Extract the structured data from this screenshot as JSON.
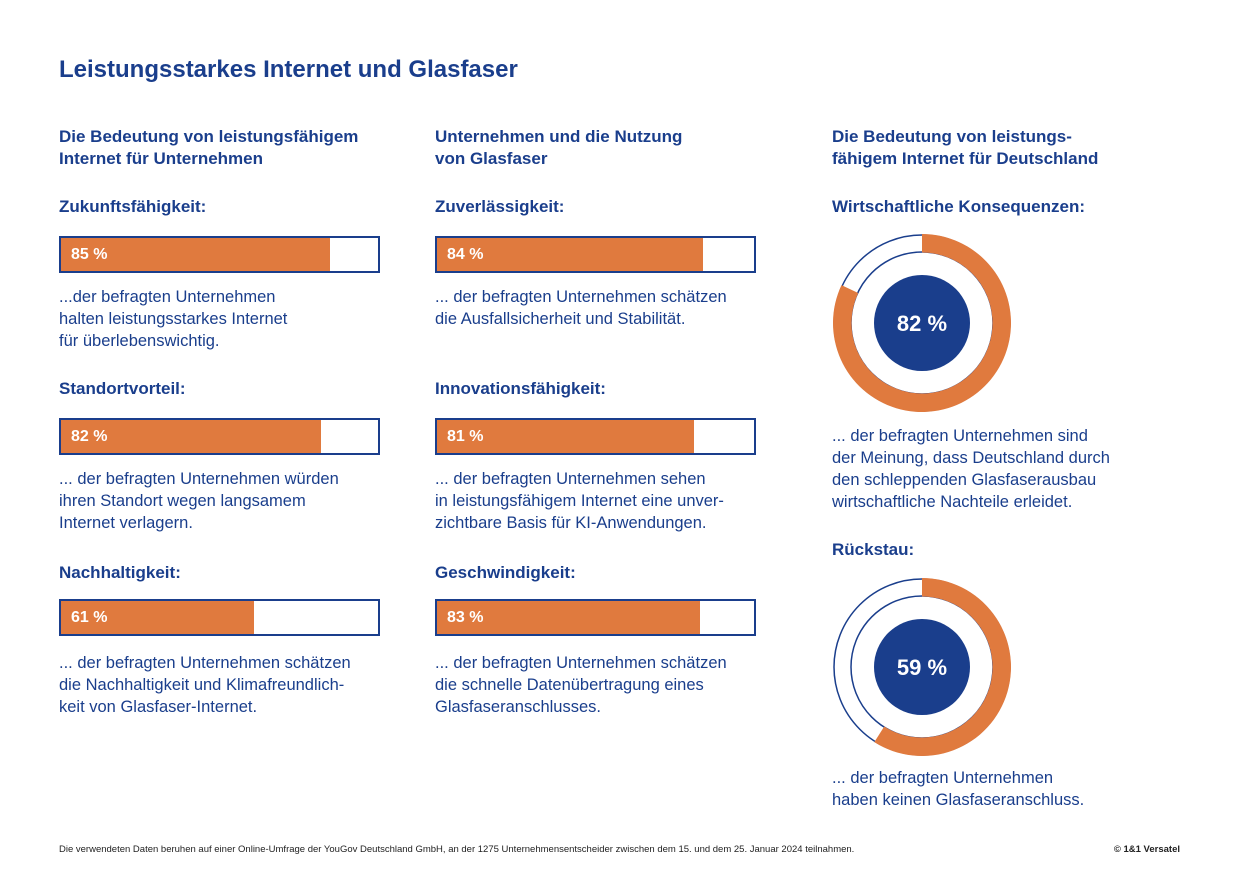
{
  "title": "Leistungsstarkes Internet und Glasfaser",
  "colors": {
    "primary": "#1a3e8c",
    "accent": "#e07a3e"
  },
  "columns": [
    {
      "heading": "Die Bedeutung von leistungsfähigem\nInternet für Unternehmen",
      "items": [
        {
          "label": "Zukunftsfähigkeit:",
          "value_text": "85 %",
          "desc": "...der befragten Unternehmen\nhalten leistungsstarkes Internet\nfür überlebenswichtig."
        },
        {
          "label": "Standortvorteil:",
          "value_text": "82 %",
          "desc": "... der befragten Unternehmen würden\nihren Standort wegen langsamem\nInternet verlagern."
        },
        {
          "label": "Nachhaltigkeit:",
          "value_text": "61 %",
          "desc": "... der befragten Unternehmen schätzen\ndie Nachhaltigkeit und Klimafreundlich-\nkeit von Glasfaser-Internet."
        }
      ]
    },
    {
      "heading": "Unternehmen und die Nutzung\nvon Glasfaser",
      "items": [
        {
          "label": "Zuverlässigkeit:",
          "value_text": "84 %",
          "desc": "... der befragten Unternehmen schätzen\ndie Ausfallsicherheit und Stabilität."
        },
        {
          "label": "Innovationsfähigkeit:",
          "value_text": "81 %",
          "desc": "... der befragten Unternehmen sehen\nin leistungsfähigem Internet eine unver-\nzichtbare Basis für KI-Anwendungen."
        },
        {
          "label": "Geschwindigkeit:",
          "value_text": "83 %",
          "desc": "... der befragten Unternehmen schätzen\ndie schnelle Datenübertragung eines\nGlasfaseranschlusses."
        }
      ]
    },
    {
      "heading": "Die Bedeutung von leistungs-\nfähigem Internet für Deutschland",
      "items": [
        {
          "label": "Wirtschaftliche Konsequenzen:",
          "value_text": "82 %",
          "desc": "...  der befragten Unternehmen sind\nder Meinung, dass Deutschland durch\nden schleppenden Glasfaserausbau\nwirtschaftliche Nachteile erleidet."
        },
        {
          "label": "Rückstau:",
          "value_text": "59 %",
          "desc": "...  der befragten Unternehmen\nhaben keinen Glasfaseranschluss."
        }
      ]
    }
  ],
  "chart_data": [
    {
      "type": "bar",
      "categories": [
        "Zukunftsfähigkeit",
        "Standortvorteil",
        "Nachhaltigkeit"
      ],
      "values": [
        85,
        82,
        61
      ],
      "ylim": [
        0,
        100
      ]
    },
    {
      "type": "bar",
      "categories": [
        "Zuverlässigkeit",
        "Innovationsfähigkeit",
        "Geschwindigkeit"
      ],
      "values": [
        84,
        81,
        83
      ],
      "ylim": [
        0,
        100
      ]
    },
    {
      "type": "pie",
      "categories": [
        "Wirtschaftliche Konsequenzen"
      ],
      "values": [
        82
      ]
    },
    {
      "type": "pie",
      "categories": [
        "Rückstau"
      ],
      "values": [
        59
      ]
    }
  ],
  "footer": "Die verwendeten Daten beruhen auf einer Online-Umfrage der YouGov Deutschland GmbH, an der 1275 Unternehmensentscheider zwischen dem 15. und dem 25. Januar 2024 teilnahmen.",
  "copyright": "© 1&1 Versatel"
}
